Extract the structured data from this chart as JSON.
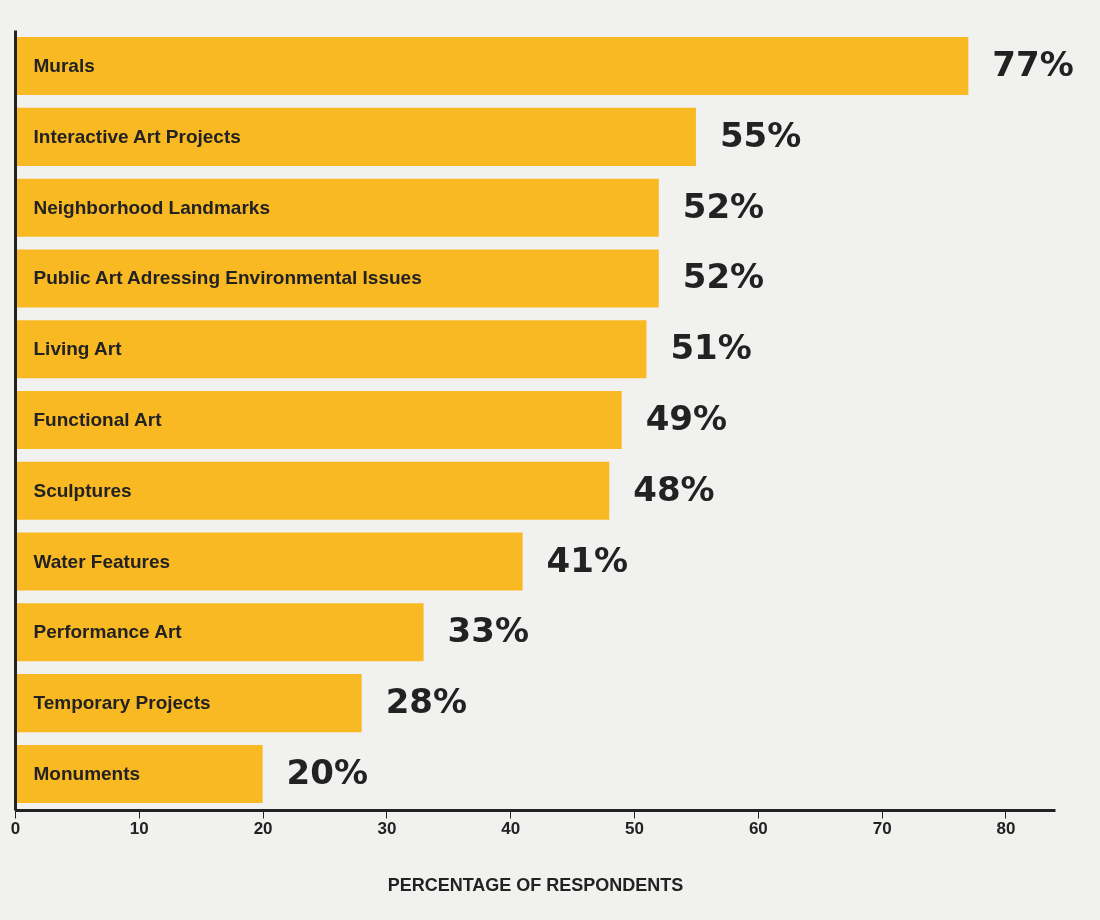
{
  "chart_data": {
    "type": "bar",
    "orientation": "horizontal",
    "xlabel": "PERCENTAGE OF RESPONDENTS",
    "categories": [
      "Murals",
      "Interactive Art Projects",
      "Neighborhood Landmarks",
      "Public Art Adressing Environmental Issues",
      "Living Art",
      "Functional Art",
      "Sculptures",
      "Water Features",
      "Performance Art",
      "Temporary Projects",
      "Monuments"
    ],
    "values": [
      77,
      55,
      52,
      52,
      51,
      49,
      48,
      41,
      33,
      28,
      20
    ],
    "value_labels": [
      "77%",
      "55%",
      "52%",
      "52%",
      "51%",
      "49%",
      "48%",
      "41%",
      "33%",
      "28%",
      "20%"
    ],
    "color": "#f9b923",
    "xlim": [
      0,
      84
    ],
    "xticks": [
      0,
      10,
      20,
      30,
      40,
      50,
      60,
      70,
      80
    ],
    "grid": false
  }
}
